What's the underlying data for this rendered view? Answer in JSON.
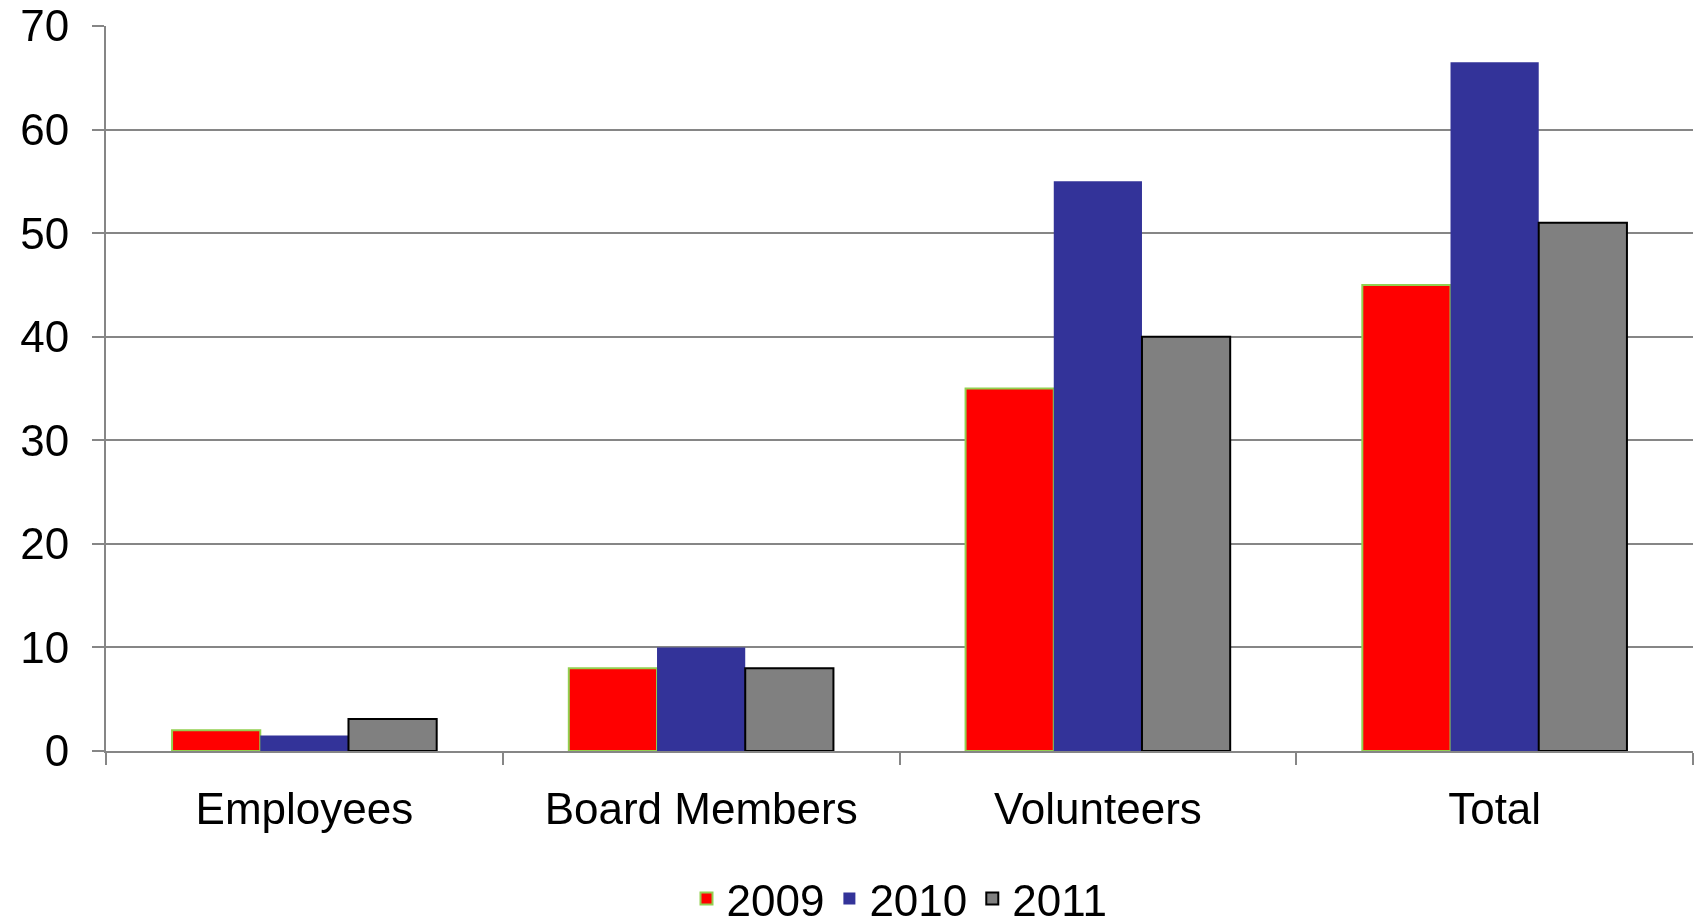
{
  "chart_data": {
    "type": "bar",
    "categories": [
      "Employees",
      "Board Members",
      "Volunteers",
      "Total"
    ],
    "series": [
      {
        "name": "2009",
        "color": "#ff0000",
        "values": [
          2,
          8,
          35,
          45
        ]
      },
      {
        "name": "2010",
        "color": "#333399",
        "values": [
          1.5,
          10,
          55,
          66.5
        ]
      },
      {
        "name": "2011",
        "color": "#808080",
        "values": [
          3.1,
          8,
          40,
          51
        ]
      }
    ],
    "ylim": [
      0,
      70
    ],
    "yticks": [
      0,
      10,
      20,
      30,
      40,
      50,
      60,
      70
    ],
    "grid": "y",
    "legend": "bottom"
  }
}
